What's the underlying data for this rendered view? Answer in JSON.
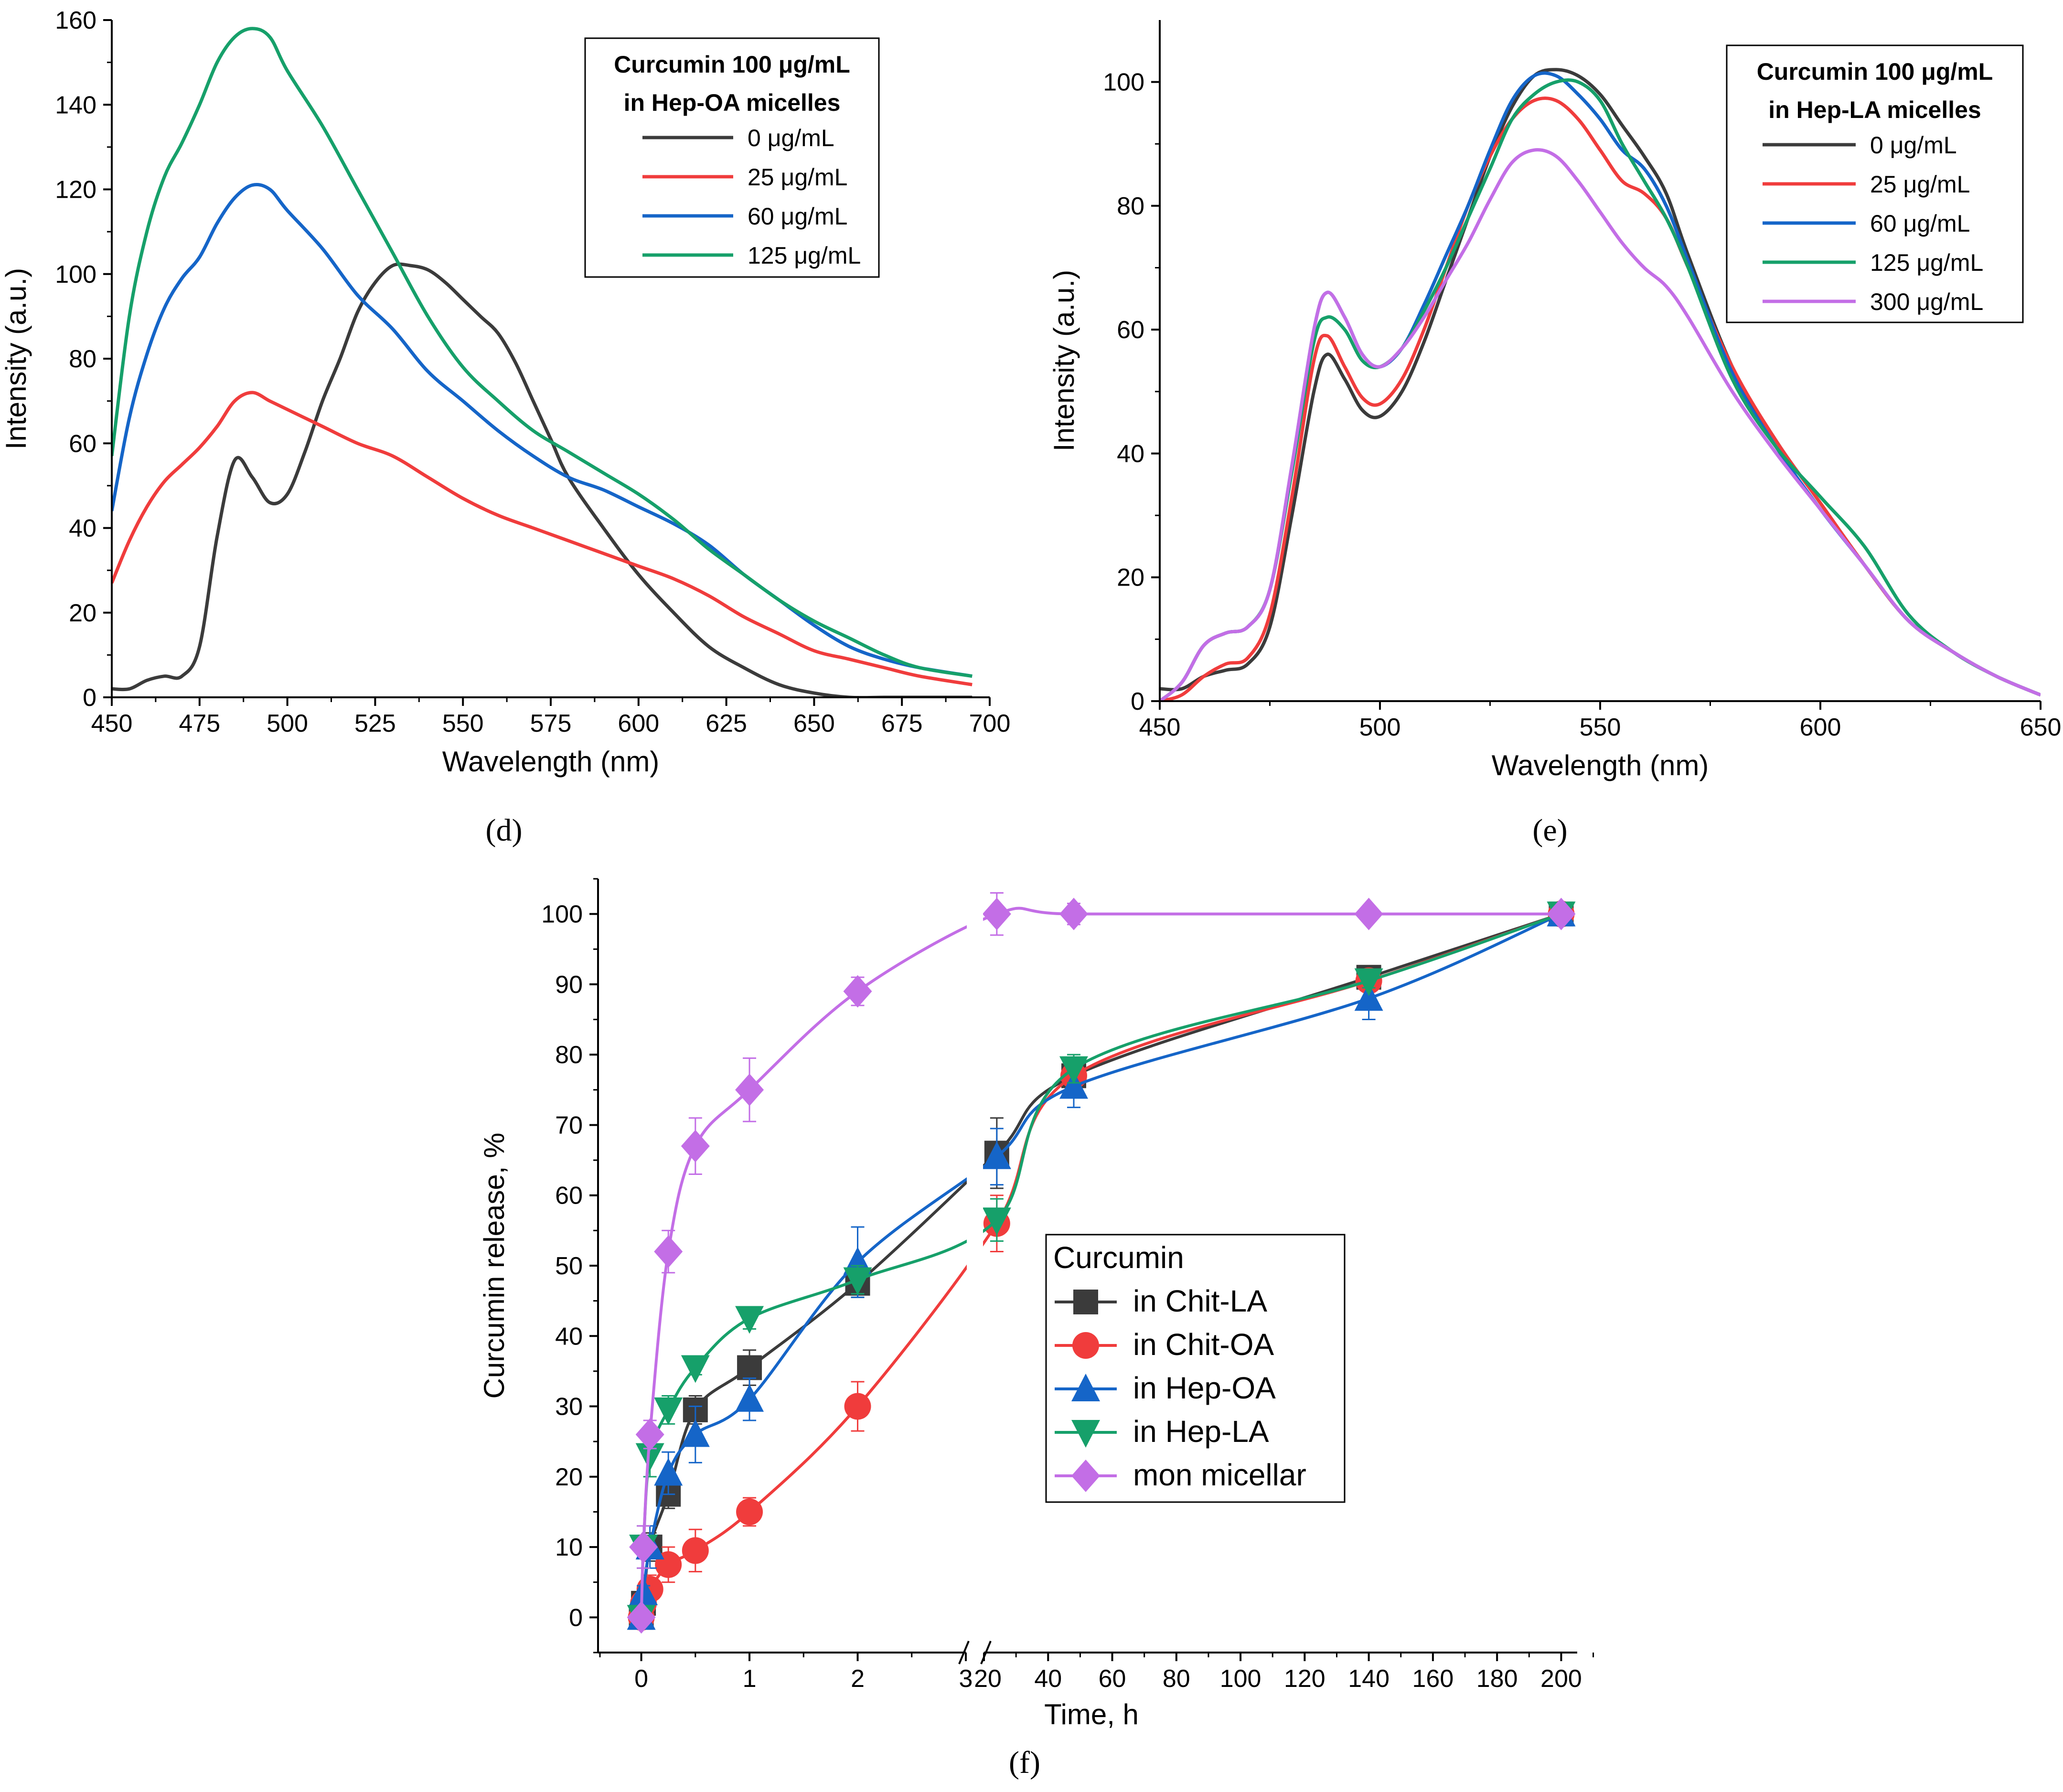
{
  "chart_data": [
    {
      "id": "d",
      "type": "line",
      "panel_label": "(d)",
      "panel_letter": "d",
      "xlabel": "Wavelength (nm)",
      "ylabel": "Intensity (a.u.)",
      "xlim": [
        450,
        700
      ],
      "ylim": [
        0,
        160
      ],
      "xticks": [
        450,
        475,
        500,
        525,
        550,
        575,
        600,
        625,
        650,
        675,
        700
      ],
      "yticks": [
        0,
        20,
        40,
        60,
        80,
        100,
        120,
        140,
        160
      ],
      "legend_title": [
        "Curcumin 100 μg/mL",
        "in Hep-OA micelles"
      ],
      "legend_position": "top-right",
      "series": [
        {
          "name": "0 μg/mL",
          "color": "#3b3b3b",
          "x": [
            450,
            455,
            460,
            465,
            470,
            475,
            480,
            485,
            490,
            495,
            500,
            505,
            510,
            515,
            520,
            525,
            530,
            535,
            540,
            545,
            550,
            555,
            560,
            565,
            570,
            575,
            580,
            590,
            600,
            610,
            620,
            630,
            640,
            650,
            660,
            670,
            680,
            695
          ],
          "y": [
            2,
            2,
            4,
            5,
            5,
            12,
            38,
            56,
            52,
            46,
            48,
            58,
            70,
            80,
            91,
            98,
            102,
            102,
            101,
            98,
            94,
            90,
            86,
            79,
            70,
            61,
            52,
            40,
            29,
            20,
            12,
            7,
            3,
            1,
            0,
            0,
            0,
            0
          ]
        },
        {
          "name": "25 μg/mL",
          "color": "#f03c3c",
          "x": [
            450,
            455,
            460,
            465,
            470,
            475,
            480,
            485,
            490,
            495,
            500,
            510,
            520,
            530,
            540,
            550,
            560,
            570,
            580,
            590,
            600,
            610,
            620,
            630,
            640,
            650,
            660,
            670,
            680,
            695
          ],
          "y": [
            27,
            37,
            45,
            51,
            55,
            59,
            64,
            70,
            72,
            70,
            68,
            64,
            60,
            57,
            52,
            47,
            43,
            40,
            37,
            34,
            31,
            28,
            24,
            19,
            15,
            11,
            9,
            7,
            5,
            3
          ]
        },
        {
          "name": "60 μg/mL",
          "color": "#1565c8",
          "x": [
            450,
            455,
            460,
            465,
            470,
            475,
            480,
            485,
            490,
            495,
            500,
            510,
            520,
            530,
            540,
            550,
            560,
            570,
            580,
            590,
            600,
            610,
            620,
            630,
            640,
            650,
            660,
            670,
            680,
            695
          ],
          "y": [
            44,
            66,
            81,
            92,
            99,
            104,
            112,
            118,
            121,
            120,
            115,
            106,
            95,
            87,
            77,
            70,
            63,
            57,
            52,
            49,
            45,
            41,
            36,
            29,
            23,
            17,
            12,
            9,
            7,
            5
          ]
        },
        {
          "name": "125 μg/mL",
          "color": "#16a06a",
          "x": [
            450,
            455,
            460,
            465,
            470,
            475,
            480,
            485,
            490,
            495,
            500,
            510,
            520,
            530,
            540,
            550,
            560,
            570,
            580,
            590,
            600,
            610,
            620,
            630,
            640,
            650,
            660,
            670,
            680,
            695
          ],
          "y": [
            57,
            90,
            110,
            123,
            131,
            140,
            150,
            156,
            158,
            156,
            148,
            135,
            120,
            105,
            90,
            78,
            70,
            63,
            58,
            53,
            48,
            42,
            35,
            29,
            23,
            18,
            14,
            10,
            7,
            5
          ]
        }
      ]
    },
    {
      "id": "e",
      "type": "line",
      "panel_label": "(e)",
      "panel_letter": "e",
      "xlabel": "Wavelength (nm)",
      "ylabel": "Intensity (a.u.)",
      "xlim": [
        450,
        650
      ],
      "ylim": [
        0,
        110
      ],
      "xticks": [
        450,
        500,
        550,
        600,
        650
      ],
      "yticks": [
        0,
        20,
        40,
        60,
        80,
        100
      ],
      "legend_title": [
        "Curcumin 100 μg/mL",
        "in Hep-LA micelles"
      ],
      "legend_position": "top-right",
      "series": [
        {
          "name": "0 μg/mL",
          "color": "#3b3b3b",
          "x": [
            450,
            455,
            460,
            465,
            470,
            475,
            480,
            485,
            488,
            492,
            496,
            500,
            505,
            510,
            515,
            520,
            525,
            530,
            535,
            540,
            545,
            550,
            555,
            560,
            565,
            570,
            580,
            590,
            600,
            610,
            620,
            630,
            640,
            650
          ],
          "y": [
            2,
            2,
            4,
            5,
            6,
            12,
            30,
            50,
            56,
            52,
            47,
            46,
            50,
            58,
            68,
            78,
            88,
            96,
            101,
            102,
            101,
            98,
            93,
            88,
            82,
            72,
            54,
            42,
            32,
            22,
            13,
            8,
            4,
            1
          ]
        },
        {
          "name": "25 μg/mL",
          "color": "#f03c3c",
          "x": [
            450,
            455,
            460,
            465,
            470,
            475,
            480,
            485,
            488,
            492,
            496,
            500,
            505,
            510,
            515,
            520,
            525,
            530,
            535,
            540,
            545,
            550,
            555,
            560,
            565,
            570,
            580,
            590,
            600,
            610,
            620,
            630,
            640,
            650
          ],
          "y": [
            0,
            1,
            4,
            6,
            7,
            14,
            33,
            55,
            59,
            54,
            49,
            48,
            52,
            60,
            70,
            80,
            88,
            94,
            97,
            97,
            94,
            89,
            84,
            82,
            78,
            70,
            54,
            42,
            32,
            22,
            13,
            8,
            4,
            1
          ]
        },
        {
          "name": "60 μg/mL",
          "color": "#1565c8",
          "x": [
            450,
            455,
            460,
            465,
            470,
            475,
            480,
            485,
            488,
            492,
            496,
            500,
            505,
            510,
            515,
            520,
            525,
            530,
            535,
            540,
            545,
            550,
            555,
            560,
            565,
            570,
            580,
            590,
            600,
            610,
            620,
            630,
            640,
            650
          ],
          "y": [
            0,
            3,
            9,
            11,
            12,
            18,
            38,
            60,
            66,
            62,
            56,
            54,
            57,
            64,
            72,
            80,
            89,
            97,
            101,
            101,
            98,
            94,
            89,
            86,
            80,
            71,
            53,
            41,
            31,
            22,
            13,
            8,
            4,
            1
          ]
        },
        {
          "name": "125 μg/mL",
          "color": "#16a06a",
          "x": [
            450,
            455,
            460,
            465,
            470,
            475,
            480,
            485,
            488,
            492,
            496,
            500,
            505,
            510,
            515,
            520,
            525,
            530,
            535,
            540,
            545,
            550,
            555,
            560,
            565,
            570,
            580,
            590,
            600,
            610,
            620,
            630,
            640,
            650
          ],
          "y": [
            0,
            3,
            9,
            11,
            12,
            18,
            37,
            58,
            62,
            60,
            55,
            54,
            57,
            63,
            70,
            78,
            86,
            94,
            98,
            100,
            100,
            97,
            90,
            84,
            78,
            70,
            52,
            41,
            33,
            25,
            14,
            8,
            4,
            1
          ]
        },
        {
          "name": "300 μg/mL",
          "color": "#c36ee6",
          "x": [
            450,
            455,
            460,
            465,
            470,
            475,
            480,
            485,
            488,
            492,
            496,
            500,
            505,
            510,
            515,
            520,
            525,
            530,
            535,
            540,
            545,
            550,
            555,
            560,
            565,
            570,
            580,
            590,
            600,
            610,
            620,
            630,
            640,
            650
          ],
          "y": [
            0,
            3,
            9,
            11,
            12,
            18,
            38,
            60,
            66,
            62,
            56,
            54,
            57,
            62,
            68,
            74,
            81,
            87,
            89,
            88,
            84,
            79,
            74,
            70,
            67,
            62,
            50,
            40,
            31,
            22,
            13,
            8,
            4,
            1
          ]
        }
      ]
    },
    {
      "id": "f",
      "type": "line",
      "panel_label": "(f)",
      "panel_letter": "f",
      "xlabel": "Time, h",
      "ylabel": "Curcumin release, %",
      "ylim": [
        -5,
        105
      ],
      "yticks": [
        0,
        10,
        20,
        30,
        40,
        50,
        60,
        70,
        80,
        90,
        100
      ],
      "x_break": {
        "left_range": [
          -0.4,
          3
        ],
        "right_range": [
          20,
          205
        ]
      },
      "xticks_left": [
        0,
        1,
        2,
        3
      ],
      "xticks_right": [
        20,
        40,
        60,
        80,
        100,
        120,
        140,
        160,
        180,
        200
      ],
      "legend_title": "Curcumin",
      "legend_position": "center-right",
      "series": [
        {
          "name": "in Chit-LA",
          "color": "#3b3b3b",
          "marker": "square",
          "x": [
            0,
            0.02,
            0.08,
            0.25,
            0.5,
            1,
            2,
            24,
            48,
            140,
            200
          ],
          "y": [
            0,
            2,
            10,
            17.5,
            29.5,
            35.5,
            47.5,
            66,
            77,
            91,
            100
          ],
          "err": [
            0,
            1,
            2,
            2,
            2,
            2.5,
            2,
            5,
            2,
            1,
            0
          ]
        },
        {
          "name": "in Chit-OA",
          "color": "#f03c3c",
          "marker": "circle",
          "x": [
            0,
            0.02,
            0.08,
            0.25,
            0.5,
            1,
            2,
            24,
            48,
            140,
            200
          ],
          "y": [
            0,
            2,
            4,
            7.5,
            9.5,
            15,
            30,
            56,
            77,
            90.5,
            100
          ],
          "err": [
            0,
            1,
            2,
            2.5,
            3,
            2,
            3.5,
            4,
            2,
            1,
            0
          ]
        },
        {
          "name": "in Hep-OA",
          "color": "#1565c8",
          "marker": "triangle-up",
          "x": [
            0,
            0.02,
            0.08,
            0.25,
            0.5,
            1,
            2,
            24,
            48,
            140,
            200
          ],
          "y": [
            0,
            3.5,
            10,
            20.5,
            26,
            31,
            50.5,
            65.5,
            75.5,
            88,
            100
          ],
          "err": [
            0,
            1,
            3,
            3,
            4,
            3,
            5,
            4,
            3,
            3,
            0
          ]
        },
        {
          "name": "in Hep-LA",
          "color": "#16a06a",
          "marker": "triangle-down",
          "x": [
            0,
            0.02,
            0.08,
            0.25,
            0.5,
            1,
            2,
            24,
            48,
            140,
            200
          ],
          "y": [
            0,
            10,
            23,
            29.5,
            35.5,
            42.5,
            48,
            56.5,
            78,
            90.5,
            100
          ],
          "err": [
            0,
            3,
            3,
            2,
            1,
            1.5,
            2,
            3,
            2,
            1,
            0
          ]
        },
        {
          "name": "mon micellar",
          "color": "#c36ee6",
          "marker": "diamond",
          "x": [
            0,
            0.02,
            0.08,
            0.25,
            0.5,
            1,
            2,
            24,
            48,
            140,
            200
          ],
          "y": [
            0,
            10,
            26,
            52,
            67,
            75,
            89,
            100,
            100,
            100,
            100
          ],
          "err": [
            0,
            3,
            2,
            3,
            4,
            4.5,
            2,
            3,
            1.5,
            0.5,
            0
          ]
        }
      ]
    }
  ]
}
